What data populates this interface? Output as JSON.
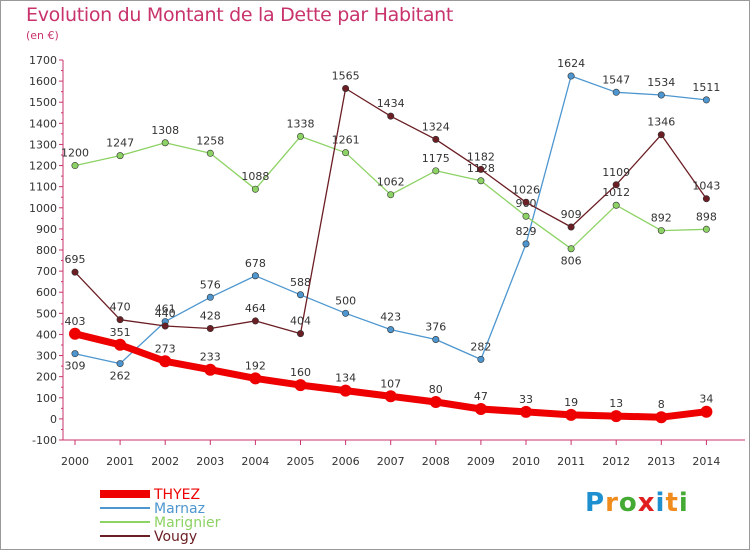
{
  "header": {
    "title": "Evolution du Montant de la Dette par Habitant",
    "subtitle": "(en €)"
  },
  "logo": {
    "text": "Proxiti",
    "colors": [
      "#1e90d0",
      "#f08c1e",
      "#44aa33",
      "#e02020",
      "#1e90d0",
      "#f08c1e",
      "#44aa33"
    ]
  },
  "chart_data": {
    "type": "line",
    "x": [
      "2000",
      "2001",
      "2002",
      "2003",
      "2004",
      "2005",
      "2006",
      "2007",
      "2008",
      "2009",
      "2010",
      "2011",
      "2012",
      "2013",
      "2014"
    ],
    "ylim": [
      -100,
      1700
    ],
    "yticks": [
      -100,
      0,
      100,
      200,
      300,
      400,
      500,
      600,
      700,
      800,
      900,
      1000,
      1100,
      1200,
      1300,
      1400,
      1500,
      1600,
      1700
    ],
    "grid": false,
    "legend_position": "bottom-left",
    "series": [
      {
        "name": "Marnaz",
        "color": "#4d96cf",
        "values": [
          309,
          262,
          461,
          576,
          678,
          588,
          500,
          423,
          376,
          282,
          829,
          1624,
          1547,
          1534,
          1511
        ]
      },
      {
        "name": "Marignier",
        "color": "#8dd264",
        "values": [
          1200,
          1247,
          1308,
          1258,
          1088,
          1338,
          1261,
          1062,
          1175,
          1128,
          960,
          806,
          1012,
          892,
          898
        ]
      },
      {
        "name": "Vougy",
        "color": "#6b1e24",
        "values": [
          695,
          470,
          440,
          428,
          464,
          404,
          1565,
          1434,
          1324,
          1182,
          1026,
          909,
          1109,
          1346,
          1043
        ]
      },
      {
        "name": "THYEZ",
        "color": "#ee0000",
        "values": [
          403,
          351,
          273,
          233,
          192,
          160,
          134,
          107,
          80,
          47,
          33,
          19,
          13,
          8,
          34
        ]
      }
    ],
    "legend": [
      {
        "name": "THYEZ",
        "color": "#ee0000"
      },
      {
        "name": "Marnaz",
        "color": "#4d96cf"
      },
      {
        "name": "Marignier",
        "color": "#8dd264"
      },
      {
        "name": "Vougy",
        "color": "#6b1e24"
      }
    ]
  }
}
